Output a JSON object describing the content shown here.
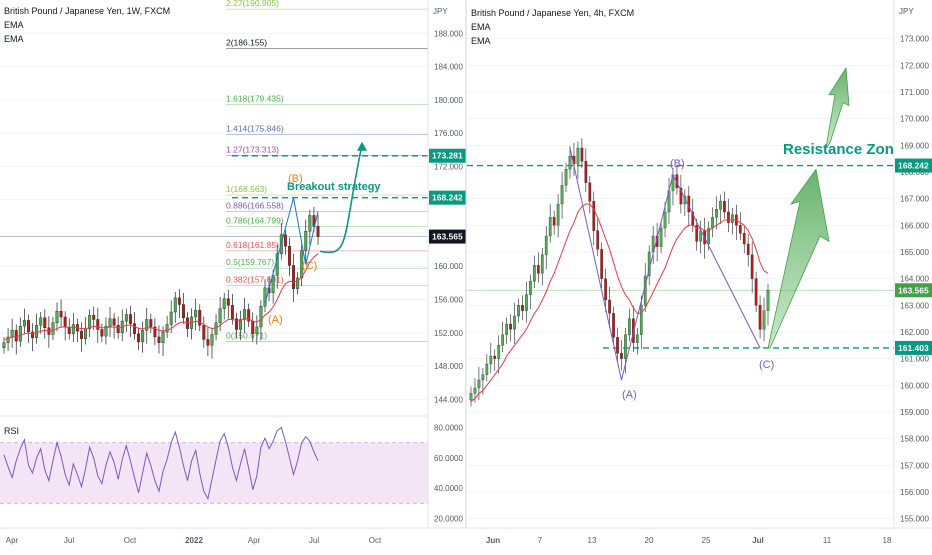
{
  "colors": {
    "up": "#26a69a",
    "down": "#ef5350",
    "candle_up_fill": "#4caf50",
    "candle_down_fill": "#b71c1c",
    "ema": "#f23645",
    "rsi": "#7e57c2",
    "rsi_band": "#f3e5f5",
    "teal": "#089981",
    "purple_wave": "#7e57c2",
    "orange_wave": "#f57c00",
    "grid": "#f0f3fa",
    "axis_text": "#555b66",
    "dark_tag": "#131722"
  },
  "left_chart": {
    "header": {
      "title": "British Pound / Japanese Yen, 1W, FXCM",
      "indicator1": "EMA",
      "indicator2": "EMA"
    },
    "currency": "JPY",
    "y_ticks": [
      "188.000",
      "184.000",
      "180.000",
      "176.000",
      "172.000",
      "168.000",
      "164.000",
      "160.000",
      "156.000",
      "152.000",
      "148.000",
      "144.000"
    ],
    "y_tick_values": [
      188,
      184,
      180,
      176,
      172,
      168,
      164,
      160,
      156,
      152,
      148,
      144
    ],
    "rsi_ticks": [
      "80.0000",
      "60.0000",
      "40.0000",
      "20.0000"
    ],
    "rsi_tick_values": [
      80,
      60,
      40,
      20
    ],
    "x_ticks": [
      "Apr",
      "Jul",
      "Oct",
      "2022",
      "Apr",
      "Jul",
      "Oct"
    ],
    "rsi_label": "RSI",
    "price_tags": [
      {
        "label": "173.281",
        "value": 173.281,
        "style": "teal"
      },
      {
        "label": "168.242",
        "value": 168.242,
        "style": "teal"
      },
      {
        "label": "163.565",
        "value": 163.565,
        "style": "dark"
      }
    ],
    "fib_levels": [
      {
        "label": "2.27(190.905)",
        "value": 190.905,
        "color": "#8bc34a"
      },
      {
        "label": "2(186.155)",
        "value": 186.155,
        "color": "#131722"
      },
      {
        "label": "1.618(179.435)",
        "value": 179.435,
        "color": "#4caf50"
      },
      {
        "label": "1.414(175.846)",
        "value": 175.846,
        "color": "#5c6bc0"
      },
      {
        "label": "1.27(173.313)",
        "value": 173.313,
        "color": "#ab47bc"
      },
      {
        "label": "1(168.563)",
        "value": 168.563,
        "color": "#8bc34a"
      },
      {
        "label": "0.886(166.558)",
        "value": 166.558,
        "color": "#7e57c2"
      },
      {
        "label": "0.786(164.799)",
        "value": 164.799,
        "color": "#4caf50"
      },
      {
        "label": "0.618(161.85)",
        "value": 161.85,
        "color": "#ef5350"
      },
      {
        "label": "0.5(159.767)",
        "value": 159.767,
        "color": "#4caf50"
      },
      {
        "label": "0.382(157.691)",
        "value": 157.691,
        "color": "#ef5350"
      },
      {
        "label": "0(150.971)",
        "value": 150.971,
        "color": "#4caf50"
      }
    ],
    "annotations": {
      "strategy": "Breakout strategy",
      "wave_a": "(A)",
      "wave_b": "(B)",
      "wave_c": "(C)"
    }
  },
  "right_chart": {
    "header": {
      "title": "British Pound / Japanese Yen, 4h, FXCM",
      "indicator1": "EMA",
      "indicator2": "EMA"
    },
    "currency": "JPY",
    "y_ticks": [
      "173.000",
      "172.000",
      "171.000",
      "170.000",
      "169.000",
      "168.000",
      "167.000",
      "166.000",
      "165.000",
      "164.000",
      "163.000",
      "162.000",
      "161.000",
      "160.000",
      "159.000",
      "158.000",
      "157.000",
      "156.000",
      "155.000"
    ],
    "y_tick_values": [
      173,
      172,
      171,
      170,
      169,
      168,
      167,
      166,
      165,
      164,
      163,
      162,
      161,
      160,
      159,
      158,
      157,
      156,
      155
    ],
    "x_ticks": [
      "Jun",
      "7",
      "13",
      "20",
      "25",
      "Jul",
      "11",
      "18"
    ],
    "price_tags": [
      {
        "label": "168.242",
        "value": 168.242,
        "style": "teal"
      },
      {
        "label": "163.565",
        "value": 163.565,
        "style": "green"
      },
      {
        "label": "161.403",
        "value": 161.403,
        "style": "teal"
      }
    ],
    "annotations": {
      "zone": "Resistance Zone",
      "wave_a": "(A)",
      "wave_b": "(B)",
      "wave_c": "(C)"
    }
  },
  "chart_data": [
    {
      "type": "candlestick",
      "title": "British Pound / Japanese Yen, 1W, FXCM",
      "ylabel": "JPY",
      "ylim": [
        142,
        192
      ],
      "x_ticks": [
        "Apr",
        "Jul",
        "Oct",
        "2022",
        "Apr",
        "Jul",
        "Oct"
      ],
      "closes": [
        150.8,
        151.5,
        152.3,
        151.0,
        152.8,
        153.5,
        152.1,
        151.4,
        152.9,
        153.8,
        152.6,
        151.8,
        153.2,
        154.6,
        153.9,
        152.7,
        151.9,
        153.0,
        152.2,
        151.3,
        152.5,
        154.1,
        153.6,
        152.4,
        151.6,
        152.8,
        153.7,
        152.9,
        152.0,
        153.4,
        154.2,
        153.1,
        151.9,
        150.9,
        152.3,
        153.6,
        152.7,
        151.5,
        150.8,
        152.1,
        153.0,
        154.5,
        156.2,
        155.4,
        153.8,
        152.5,
        153.9,
        154.7,
        152.9,
        151.2,
        150.5,
        151.8,
        153.2,
        154.9,
        156.1,
        155.3,
        153.7,
        152.4,
        153.6,
        154.8,
        153.4,
        151.9,
        152.7,
        155.2,
        157.4,
        156.8,
        158.9,
        161.5,
        163.8,
        162.4,
        160.1,
        157.3,
        158.6,
        161.9,
        164.2,
        166.1,
        164.8,
        163.565
      ],
      "ema_values": [
        151.2,
        151.3,
        151.5,
        151.5,
        151.7,
        151.9,
        151.9,
        151.9,
        152.0,
        152.2,
        152.3,
        152.2,
        152.3,
        152.5,
        152.7,
        152.7,
        152.6,
        152.7,
        152.6,
        152.5,
        152.5,
        152.6,
        152.8,
        152.7,
        152.6,
        152.6,
        152.7,
        152.7,
        152.6,
        152.7,
        152.9,
        152.9,
        152.8,
        152.5,
        152.5,
        152.6,
        152.6,
        152.5,
        152.3,
        152.2,
        152.3,
        152.5,
        152.9,
        153.2,
        153.3,
        153.2,
        153.2,
        153.4,
        153.3,
        153.0,
        152.7,
        152.5,
        152.6,
        152.9,
        153.3,
        153.6,
        153.6,
        153.5,
        153.5,
        153.7,
        153.7,
        153.4,
        153.3,
        153.6,
        154.1,
        154.5,
        155.1,
        156.0,
        157.1,
        157.9,
        158.2,
        158.1,
        158.2,
        158.7,
        159.5,
        160.5,
        161.1,
        161.5
      ],
      "rsi": {
        "ylim": [
          15,
          85
        ],
        "band": [
          30,
          70
        ],
        "series": [
          62,
          54,
          47,
          58,
          66,
          72,
          55,
          50,
          60,
          66,
          52,
          45,
          58,
          70,
          61,
          49,
          42,
          56,
          49,
          41,
          53,
          67,
          60,
          48,
          43,
          55,
          64,
          57,
          46,
          59,
          68,
          58,
          47,
          37,
          50,
          63,
          55,
          45,
          38,
          51,
          59,
          70,
          77,
          67,
          55,
          45,
          58,
          65,
          50,
          38,
          33,
          46,
          59,
          71,
          76,
          67,
          54,
          45,
          56,
          66,
          53,
          39,
          48,
          67,
          73,
          66,
          71,
          78,
          80,
          71,
          60,
          49,
          58,
          70,
          74,
          71,
          64,
          58
        ]
      },
      "fib_levels": [
        2.27,
        2,
        1.618,
        1.414,
        1.27,
        1,
        0.886,
        0.786,
        0.618,
        0.5,
        0.382,
        0
      ],
      "fib_prices": [
        190.905,
        186.155,
        179.435,
        175.846,
        173.313,
        168.563,
        166.558,
        164.799,
        161.85,
        159.767,
        157.691,
        150.971
      ],
      "levels": [
        173.281,
        168.242,
        163.565
      ],
      "waves": {
        "A": 155.5,
        "B": 168.2,
        "C": 160.2
      }
    },
    {
      "type": "candlestick",
      "title": "British Pound / Japanese Yen, 4h, FXCM",
      "ylabel": "JPY",
      "ylim": [
        154.8,
        174.3
      ],
      "x_ticks": [
        "Jun",
        "7",
        "13",
        "20",
        "25",
        "Jul",
        "11",
        "18"
      ],
      "closes": [
        159.7,
        159.9,
        160.2,
        160.4,
        160.8,
        161.1,
        161.0,
        161.5,
        161.9,
        162.3,
        162.1,
        162.6,
        163.0,
        162.8,
        163.4,
        163.9,
        164.5,
        164.2,
        164.9,
        165.6,
        166.3,
        166.0,
        166.8,
        167.5,
        168.1,
        168.6,
        168.3,
        168.9,
        168.4,
        167.6,
        166.9,
        165.8,
        165.1,
        164.0,
        163.2,
        162.7,
        161.8,
        161.2,
        161.0,
        161.9,
        162.5,
        161.6,
        161.9,
        163.0,
        164.1,
        165.0,
        165.6,
        165.2,
        165.9,
        166.5,
        167.3,
        167.9,
        167.4,
        166.8,
        167.1,
        166.5,
        166.0,
        165.4,
        165.8,
        165.3,
        165.9,
        166.3,
        166.6,
        166.9,
        166.5,
        166.1,
        166.4,
        166.0,
        165.7,
        165.3,
        164.9,
        164.0,
        163.0,
        162.1,
        162.8,
        163.565
      ],
      "ema_values": [
        159.4,
        159.5,
        159.7,
        159.8,
        160.0,
        160.2,
        160.4,
        160.6,
        160.8,
        161.1,
        161.3,
        161.5,
        161.7,
        161.9,
        162.1,
        162.4,
        162.7,
        162.9,
        163.2,
        163.5,
        163.9,
        164.2,
        164.6,
        165.0,
        165.4,
        165.8,
        166.1,
        166.5,
        166.7,
        166.8,
        166.8,
        166.6,
        166.3,
        165.9,
        165.5,
        165.1,
        164.6,
        164.1,
        163.7,
        163.4,
        163.2,
        162.9,
        162.7,
        162.7,
        162.9,
        163.2,
        163.5,
        163.8,
        164.1,
        164.4,
        164.8,
        165.2,
        165.5,
        165.7,
        165.9,
        166.0,
        166.0,
        165.9,
        165.9,
        165.8,
        165.8,
        165.9,
        166.0,
        166.1,
        166.2,
        166.2,
        166.2,
        166.2,
        166.1,
        166.0,
        165.8,
        165.5,
        165.1,
        164.6,
        164.3,
        164.2
      ],
      "levels": [
        168.242,
        163.565,
        161.403
      ],
      "waves": {
        "A": 160.2,
        "B": 167.9,
        "C": 161.4
      }
    }
  ]
}
